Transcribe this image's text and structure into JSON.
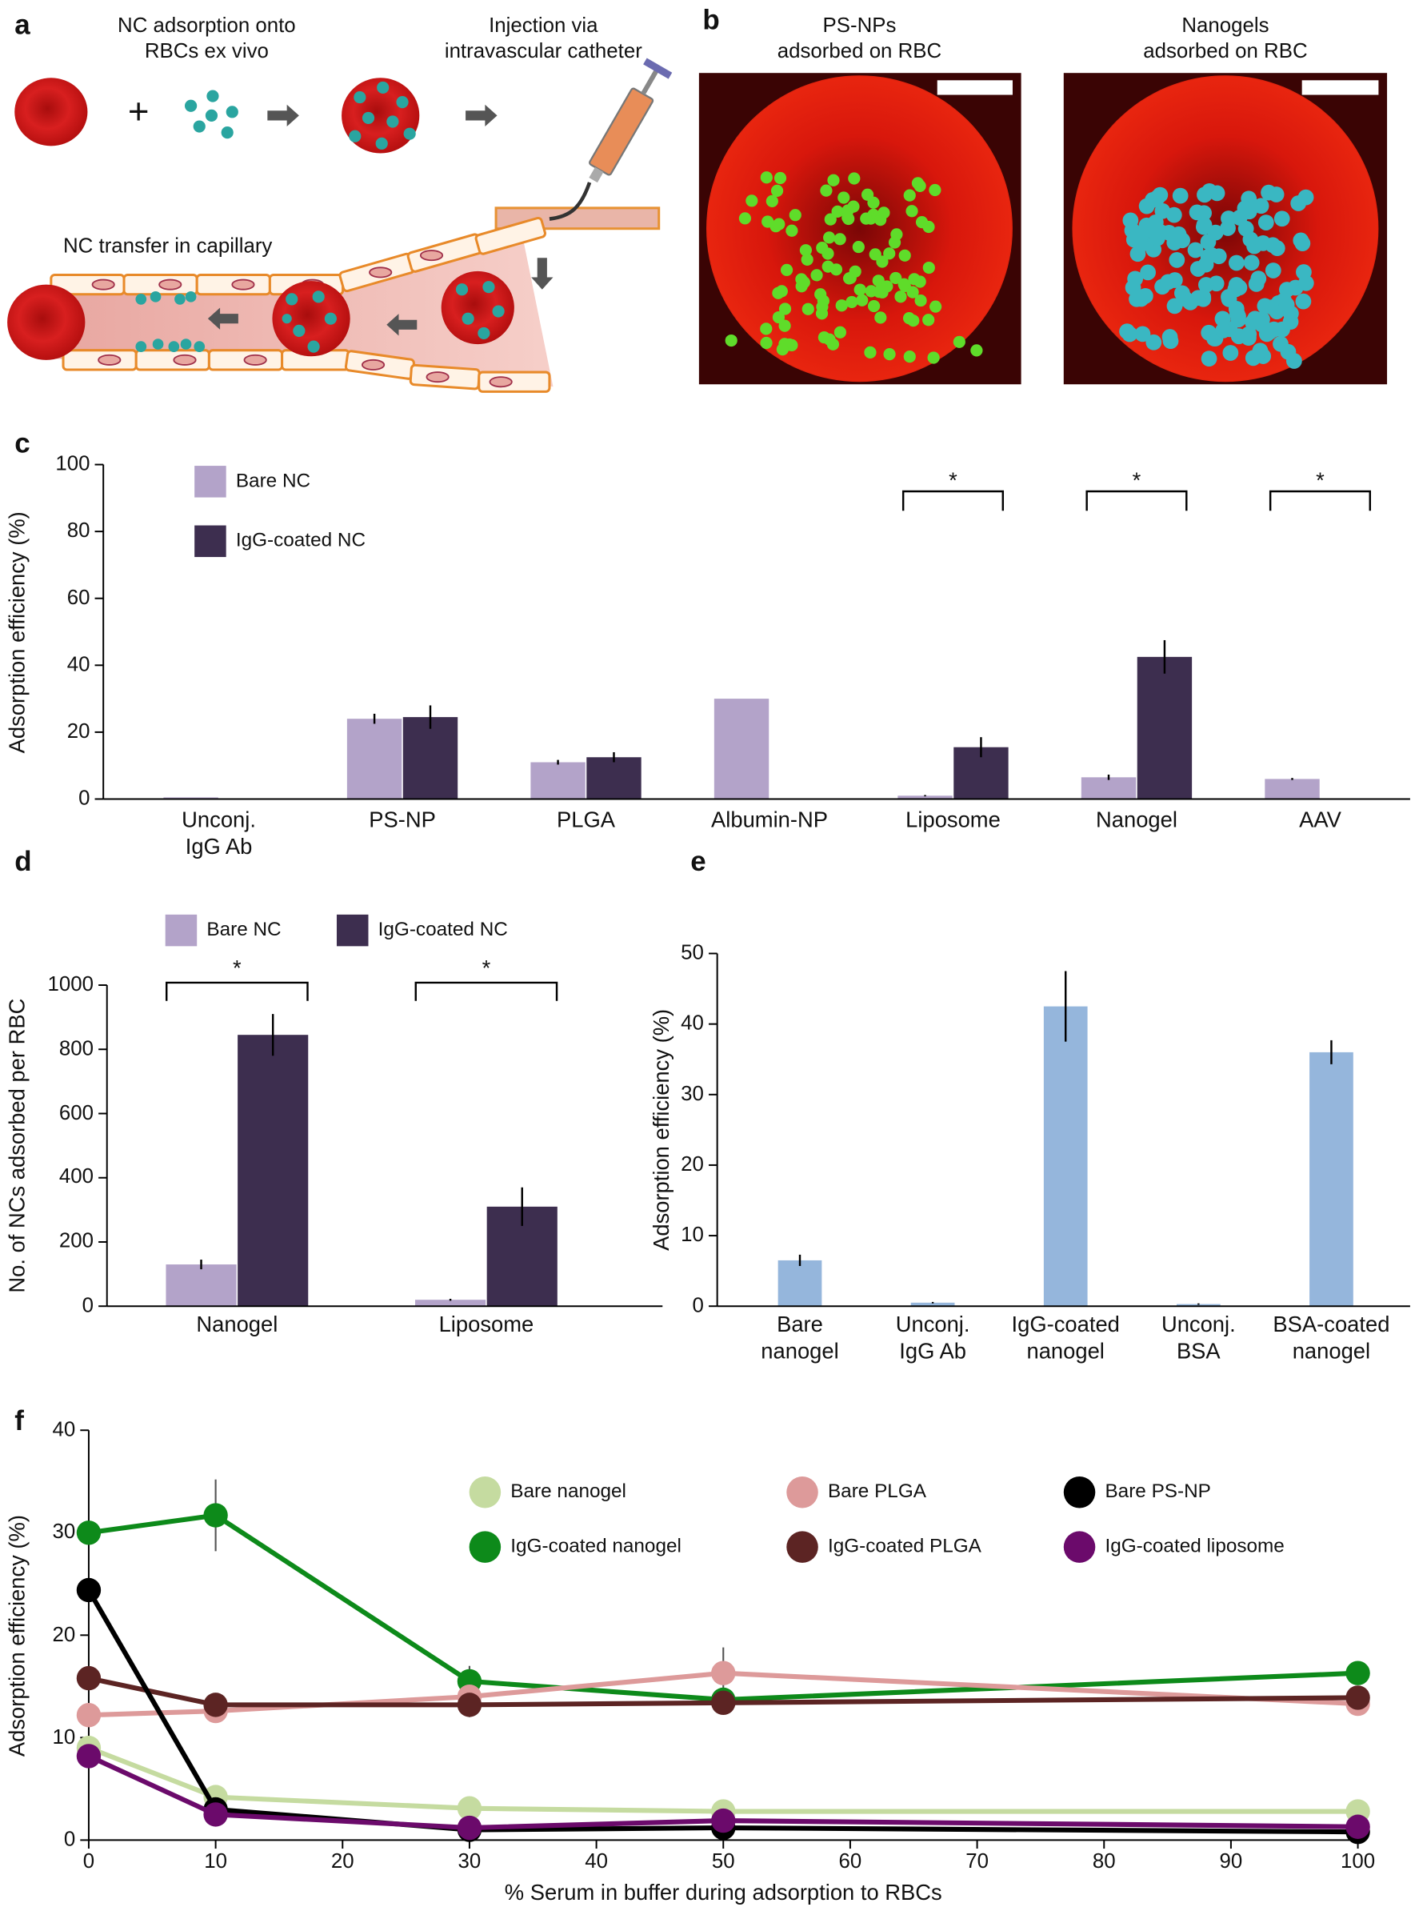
{
  "panel_a": {
    "label": "a",
    "step1": "NC adsorption onto\nRBCs ex vivo",
    "step2": "Injection via\nintravascular catheter",
    "step3": "NC transfer in capillary",
    "plus": "+"
  },
  "panel_b": {
    "label": "b",
    "image1_title": "PS-NPs\nadsorbed on RBC",
    "image2_title": "Nanogels\nadsorbed on RBC"
  },
  "chart_data": [
    {
      "panel_label": "c",
      "type": "bar",
      "categories": [
        "Unconj.\nIgG Ab",
        "PS-NP",
        "PLGA",
        "Albumin-NP",
        "Liposome",
        "Nanogel",
        "AAV"
      ],
      "series": [
        {
          "name": "Bare NC",
          "color": "#b3a3c9",
          "values": [
            0.5,
            24,
            11,
            30,
            1,
            6.5,
            6
          ],
          "errors": [
            null,
            1.5,
            0.7,
            null,
            0.2,
            0.8,
            0.3
          ]
        },
        {
          "name": "IgG-coated NC",
          "color": "#3d2e4f",
          "values": [
            null,
            24.5,
            12.5,
            null,
            15.5,
            42.5,
            null
          ],
          "errors": [
            null,
            3.5,
            1.5,
            null,
            3,
            5,
            null
          ]
        }
      ],
      "ylim": [
        0,
        100
      ],
      "yticks": [
        0,
        20,
        40,
        60,
        80,
        100
      ],
      "ylabel": "Adsorption efficiency (%)",
      "significance": [
        {
          "category": "Liposome",
          "label": "*"
        },
        {
          "category": "Nanogel",
          "label": "*"
        },
        {
          "category": "AAV",
          "label": "*"
        }
      ]
    },
    {
      "panel_label": "d",
      "type": "bar",
      "categories": [
        "Nanogel",
        "Liposome"
      ],
      "series": [
        {
          "name": "Bare NC",
          "color": "#b3a3c9",
          "values": [
            130,
            20
          ],
          "errors": [
            15,
            3
          ]
        },
        {
          "name": "IgG-coated NC",
          "color": "#3d2e4f",
          "values": [
            845,
            310
          ],
          "errors": [
            65,
            60
          ]
        }
      ],
      "ylim": [
        0,
        1000
      ],
      "yticks": [
        0,
        200,
        400,
        600,
        800,
        1000
      ],
      "ylabel": "No. of NCs adsorbed per RBC",
      "significance": [
        {
          "category": "Nanogel",
          "label": "*"
        },
        {
          "category": "Liposome",
          "label": "*"
        }
      ]
    },
    {
      "panel_label": "e",
      "type": "bar",
      "categories": [
        "Bare\nnanogel",
        "Unconj.\nIgG Ab",
        "IgG-coated\nnanogel",
        "Unconj.\nBSA",
        "BSA-coated\nnanogel"
      ],
      "series": [
        {
          "color": "#95b6dc",
          "values": [
            6.5,
            0.5,
            42.5,
            0.3,
            36
          ],
          "errors": [
            0.8,
            0.1,
            5,
            0.1,
            1.7
          ]
        }
      ],
      "ylim": [
        0,
        50
      ],
      "yticks": [
        0,
        10,
        20,
        30,
        40,
        50
      ],
      "ylabel": "Adsorption efficiency (%)"
    },
    {
      "panel_label": "f",
      "type": "line",
      "x": [
        0,
        10,
        30,
        50,
        100
      ],
      "series": [
        {
          "name": "Bare nanogel",
          "color": "#c5dba0",
          "values": [
            9,
            4.2,
            3.1,
            2.8,
            2.8
          ]
        },
        {
          "name": "IgG-coated nanogel",
          "color": "#0d8a1a",
          "values": [
            30,
            31.7,
            15.5,
            13.7,
            16.3
          ],
          "errors": [
            null,
            3.5,
            1.5,
            null,
            null
          ]
        },
        {
          "name": "Bare PLGA",
          "color": "#dd9a9a",
          "values": [
            12.2,
            12.6,
            14,
            16.3,
            13.3
          ],
          "errors": [
            null,
            null,
            2,
            2.5,
            null
          ]
        },
        {
          "name": "IgG-coated PLGA",
          "color": "#5c2423",
          "values": [
            15.8,
            13.2,
            13.2,
            13.4,
            13.9
          ]
        },
        {
          "name": "Bare PS-NP",
          "color": "#000000",
          "values": [
            24.4,
            3,
            1,
            1.2,
            0.8
          ]
        },
        {
          "name": "IgG-coated liposome",
          "color": "#6b0a6b",
          "values": [
            8.2,
            2.5,
            1.2,
            1.9,
            1.3
          ]
        }
      ],
      "xlim": [
        0,
        100
      ],
      "xticks": [
        0,
        10,
        20,
        30,
        40,
        50,
        60,
        70,
        80,
        90,
        100
      ],
      "ylim": [
        0,
        40
      ],
      "yticks": [
        0,
        10,
        20,
        30,
        40
      ],
      "xlabel": "% Serum in buffer during adsorption to RBCs",
      "ylabel": "Adsorption efficiency (%)"
    }
  ]
}
